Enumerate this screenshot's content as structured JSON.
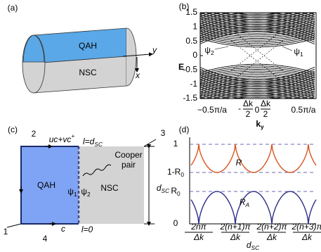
{
  "panel_a": {
    "label": "(a)",
    "top": "QAH",
    "bottom": "NSC",
    "axis_y": "y",
    "axis_x": "x"
  },
  "panel_b": {
    "label": "(b)",
    "y_axis_label": "E",
    "y_ticks": [
      "1.5",
      "1",
      "0.5",
      "0",
      "-0.5",
      "-1",
      "-1.5"
    ],
    "x_ticks": [
      {
        "text": "−0.5π/a"
      },
      {
        "sign": "-",
        "num": "Δk",
        "den": "2"
      },
      {
        "text": "0"
      },
      {
        "num": "Δk",
        "den": "2"
      },
      {
        "text": "0.5π/a"
      }
    ],
    "x_axis_label": {
      "main": "k",
      "sub": "y"
    },
    "states": [
      {
        "main": "ψ",
        "sub": "2"
      },
      {
        "main": "ψ",
        "sub": "1"
      }
    ]
  },
  "panel_c": {
    "label": "(c)",
    "corners": [
      "1",
      "2",
      "3",
      "4"
    ],
    "top_current": {
      "main": "uc+vc",
      "sup": "+"
    },
    "top_position": {
      "main": "l=d",
      "sub": "SC"
    },
    "bottom_current": "c",
    "bottom_position": "l=0",
    "pair": [
      "Cooper",
      "pair"
    ],
    "left": "QAH",
    "right": "NSC",
    "states": [
      {
        "main": "ψ",
        "sub": "1"
      },
      {
        "main": "ψ",
        "sub": "2"
      }
    ],
    "width": {
      "main": "d",
      "sub": "SC"
    }
  },
  "panel_d": {
    "label": "(d)",
    "y_ticks": [
      {
        "main": "1"
      },
      {
        "main": "1-R",
        "sub": "0"
      },
      {
        "main": "R",
        "sub": "0"
      },
      {
        "main": "0"
      }
    ],
    "curves": [
      {
        "main": "R"
      },
      {
        "main": "R",
        "sub": "A"
      }
    ],
    "x_ticks": [
      {
        "num": "2nπ",
        "den": "Δk"
      },
      {
        "num": "2(n+1)π",
        "den": "Δk"
      },
      {
        "num": "2(n+2)π",
        "den": "Δk"
      },
      {
        "num": "2(n+3)π",
        "den": "Δk"
      }
    ],
    "x_axis_label": {
      "main": "d",
      "sub": "SC"
    }
  }
}
